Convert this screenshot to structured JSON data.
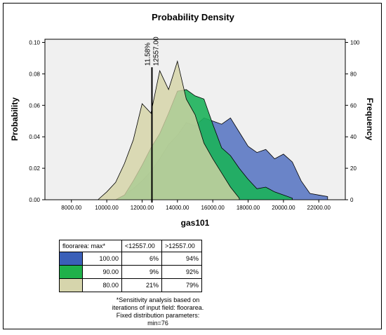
{
  "chart_data": {
    "type": "area",
    "title": "Probability Density",
    "xlabel": "gas101",
    "ylabel": "Probability",
    "y2label": "Frequency",
    "xlim": [
      6500,
      23500
    ],
    "ylim": [
      0,
      0.102
    ],
    "y2lim": [
      0,
      102
    ],
    "x_ticks": [
      "8000.00",
      "10000.00",
      "12000.00",
      "14000.00",
      "16000.00",
      "18000.00",
      "20000.00",
      "22000.00"
    ],
    "x_tick_values": [
      8000,
      10000,
      12000,
      14000,
      16000,
      18000,
      20000,
      22000
    ],
    "y_ticks": [
      "0.00",
      "0.02",
      "0.04",
      "0.06",
      "0.08",
      "0.10"
    ],
    "y_tick_values": [
      0,
      0.02,
      0.04,
      0.06,
      0.08,
      0.1
    ],
    "y2_ticks": [
      "0",
      "20",
      "40",
      "60",
      "80",
      "100"
    ],
    "y2_tick_values": [
      0,
      20,
      40,
      60,
      80,
      100
    ],
    "marker": {
      "x": 12557,
      "label_pct": "11.58%",
      "label_val": "12557.00"
    },
    "series": [
      {
        "name": "100.00",
        "color": "#5b78c3",
        "x": [
          10000,
          10500,
          11000,
          11500,
          12000,
          12500,
          13000,
          13500,
          14000,
          14500,
          15000,
          15500,
          16000,
          16500,
          17000,
          17500,
          18000,
          18500,
          19000,
          19500,
          20000,
          20500,
          21000,
          21500,
          22000,
          22500
        ],
        "y": [
          0.0,
          0.0,
          0.003,
          0.007,
          0.012,
          0.018,
          0.026,
          0.035,
          0.041,
          0.049,
          0.047,
          0.052,
          0.05,
          0.048,
          0.052,
          0.043,
          0.034,
          0.03,
          0.032,
          0.026,
          0.029,
          0.024,
          0.012,
          0.004,
          0.003,
          0.002
        ]
      },
      {
        "name": "90.00",
        "color": "#1cb15a",
        "x": [
          10500,
          11000,
          11500,
          12000,
          12500,
          13000,
          13500,
          14000,
          14500,
          15000,
          15500,
          16000,
          16500,
          17000,
          17500,
          18000,
          18500,
          19000,
          19500,
          20000,
          20500
        ],
        "y": [
          0.0,
          0.003,
          0.012,
          0.022,
          0.033,
          0.042,
          0.055,
          0.069,
          0.07,
          0.066,
          0.064,
          0.048,
          0.033,
          0.028,
          0.02,
          0.013,
          0.007,
          0.008,
          0.005,
          0.003,
          0.001
        ]
      },
      {
        "name": "80.00",
        "color": "#d5d3a5",
        "x": [
          9500,
          10000,
          10500,
          11000,
          11500,
          12000,
          12500,
          13000,
          13500,
          14000,
          14500,
          15000,
          15500,
          16000,
          16500,
          17000,
          17500
        ],
        "y": [
          0.0,
          0.005,
          0.011,
          0.023,
          0.038,
          0.061,
          0.055,
          0.082,
          0.07,
          0.088,
          0.064,
          0.054,
          0.036,
          0.026,
          0.017,
          0.008,
          0.001
        ]
      }
    ],
    "grid": false
  },
  "legend_table": {
    "header": [
      "floorarea: max*",
      "<12557.00",
      ">12557.00"
    ],
    "rows": [
      {
        "value": "100.00",
        "color": "#3a5fb8",
        "below": "6%",
        "above": "94%"
      },
      {
        "value": "90.00",
        "color": "#1fb14a",
        "below": "9%",
        "above": "92%"
      },
      {
        "value": "80.00",
        "color": "#d6d5ac",
        "below": "21%",
        "above": "79%"
      }
    ]
  },
  "note": "*Sensitivity analysis based on iterations of input field: floorarea. Fixed distribution parameters: min=76"
}
